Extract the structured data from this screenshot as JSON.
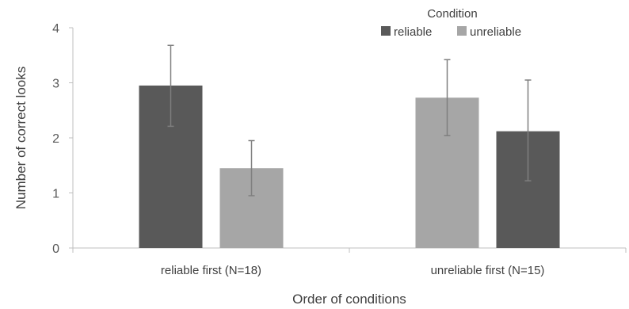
{
  "chart_data": {
    "type": "bar",
    "xlabel": "Order of conditions",
    "ylabel": "Number of correct looks",
    "ylim": [
      0,
      4
    ],
    "yticks": [
      0,
      1,
      2,
      3,
      4
    ],
    "grid": false,
    "legend": {
      "title": "Condition",
      "placement": "top-right",
      "entries": [
        {
          "name": "reliable",
          "color": "#595959"
        },
        {
          "name": "unreliable",
          "color": "#a6a6a6"
        }
      ]
    },
    "groups": [
      {
        "label": "reliable first (N=18)",
        "bars": [
          {
            "series": "reliable",
            "value": 2.95,
            "err_low": 2.21,
            "err_high": 3.68
          },
          {
            "series": "unreliable",
            "value": 1.45,
            "err_low": 0.95,
            "err_high": 1.95
          }
        ]
      },
      {
        "label": "unreliable first (N=15)",
        "bars": [
          {
            "series": "unreliable",
            "value": 2.73,
            "err_low": 2.04,
            "err_high": 3.42
          },
          {
            "series": "reliable",
            "value": 2.12,
            "err_low": 1.22,
            "err_high": 3.05
          }
        ]
      }
    ]
  }
}
